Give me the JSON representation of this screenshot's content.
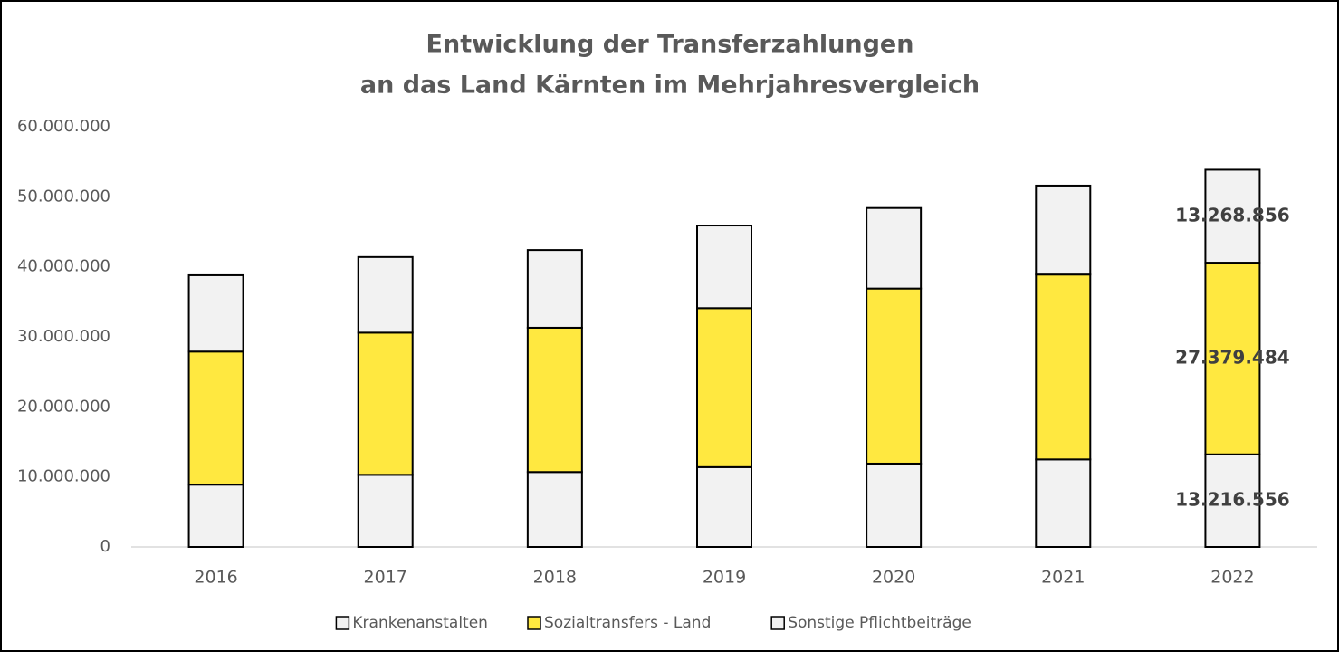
{
  "chart_data": {
    "type": "stacked_bar",
    "title": [
      "Entwicklung der Transferzahlungen",
      "an das Land Kärnten im Mehrjahresvergleich"
    ],
    "categories": [
      "2016",
      "2017",
      "2018",
      "2019",
      "2020",
      "2021",
      "2022"
    ],
    "series": [
      {
        "name": "Krankenanstalten",
        "color": "#f2f2f2",
        "values": [
          8900000,
          10300000,
          10700000,
          11400000,
          11900000,
          12500000,
          13216556
        ],
        "value_labels": [
          null,
          null,
          null,
          null,
          null,
          null,
          "13.216.556"
        ]
      },
      {
        "name": "Sozialtransfers - Land",
        "color": "#ffe840",
        "values": [
          19000000,
          20300000,
          20600000,
          22700000,
          25000000,
          26400000,
          27379484
        ],
        "value_labels": [
          null,
          null,
          null,
          null,
          null,
          null,
          "27.379.484"
        ]
      },
      {
        "name": "Sonstige Pflichtbeiträge",
        "color": "#f2f2f2",
        "values": [
          10900000,
          10800000,
          11100000,
          11800000,
          11500000,
          12700000,
          13268856
        ],
        "value_labels": [
          null,
          null,
          null,
          null,
          null,
          null,
          "13.268.856"
        ]
      }
    ],
    "ylim": [
      0,
      60000000
    ],
    "yticks": [
      0,
      {
        "value": 10000000,
        "label": "10.000.000"
      },
      {
        "value": 20000000,
        "label": "20.000.000"
      },
      {
        "value": 30000000,
        "label": "30.000.000"
      },
      {
        "value": 40000000,
        "label": "40.000.000"
      },
      {
        "value": 50000000,
        "label": "50.000.000"
      },
      {
        "value": 60000000,
        "label": "60.000.000"
      }
    ],
    "grid": false,
    "legend": "bottom"
  }
}
